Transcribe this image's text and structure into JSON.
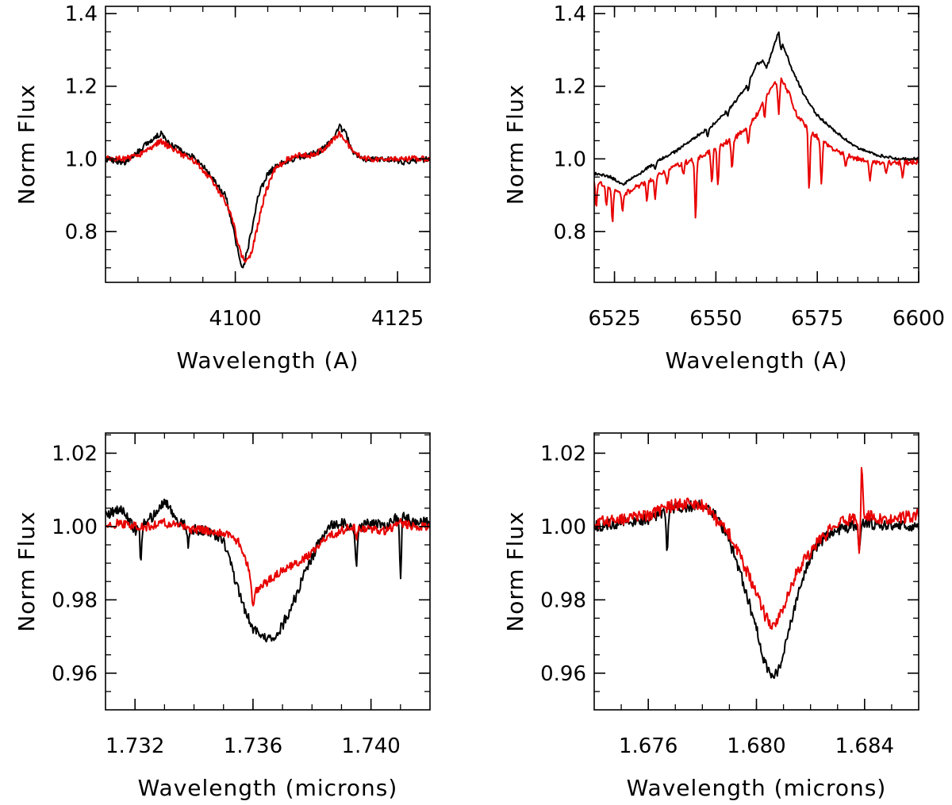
{
  "figure": {
    "layout": "2x2 grid"
  },
  "colors": {
    "series_black": "#000000",
    "series_red": "#e80000",
    "axes": "#000000"
  },
  "chart_data": [
    {
      "type": "line",
      "panel": "top-left",
      "xlabel": "Wavelength (A)",
      "ylabel": "Norm Flux",
      "xlim": [
        4080,
        4130
      ],
      "ylim": [
        0.66,
        1.42
      ],
      "xticks": [
        4100,
        4125
      ],
      "xtick_labels": [
        "4100",
        "4125"
      ],
      "xminor": 5,
      "yticks": [
        0.8,
        1.0,
        1.2,
        1.4
      ],
      "ytick_labels": [
        "0.8",
        "1.0",
        "1.2",
        "1.4"
      ],
      "yminor": 0.05,
      "series": [
        {
          "name": "black",
          "color": "#000000",
          "x": [
            4080,
            4083,
            4085,
            4087,
            4088.5,
            4090,
            4092,
            4094,
            4096,
            4097.5,
            4098.5,
            4099.5,
            4100.5,
            4101,
            4101.5,
            4102.5,
            4103.5,
            4105,
            4107,
            4109,
            4111,
            4113,
            4115,
            4116,
            4117,
            4118,
            4120,
            4123,
            4126,
            4130
          ],
          "y": [
            1.0,
            0.99,
            1.02,
            1.05,
            1.07,
            1.04,
            1.02,
            1.0,
            0.96,
            0.92,
            0.9,
            0.82,
            0.74,
            0.7,
            0.72,
            0.8,
            0.9,
            0.96,
            0.99,
            1.0,
            1.01,
            1.02,
            1.05,
            1.09,
            1.07,
            1.02,
            1.0,
            1.0,
            0.99,
            1.0
          ],
          "noise": 0.008
        },
        {
          "name": "red",
          "color": "#e80000",
          "x": [
            4080,
            4083,
            4085,
            4087,
            4088.5,
            4090,
            4092,
            4094,
            4096,
            4097.5,
            4098.5,
            4099.5,
            4100.5,
            4101.5,
            4102.5,
            4103.5,
            4104.5,
            4106,
            4108,
            4110,
            4112,
            4114,
            4116,
            4117,
            4118,
            4120,
            4123,
            4126,
            4130
          ],
          "y": [
            1.0,
            1.0,
            1.01,
            1.03,
            1.05,
            1.03,
            1.01,
            0.99,
            0.95,
            0.91,
            0.88,
            0.84,
            0.76,
            0.71,
            0.74,
            0.82,
            0.9,
            0.97,
            1.0,
            1.01,
            1.01,
            1.03,
            1.07,
            1.05,
            1.02,
            1.0,
            1.0,
            1.0,
            1.0
          ],
          "noise": 0.008
        }
      ]
    },
    {
      "type": "line",
      "panel": "top-right",
      "xlabel": "Wavelength (A)",
      "ylabel": "Norm Flux",
      "xlim": [
        6520,
        6600
      ],
      "ylim": [
        0.66,
        1.42
      ],
      "xticks": [
        6525,
        6550,
        6575,
        6600
      ],
      "xtick_labels": [
        "6525",
        "6550",
        "6575",
        "6600"
      ],
      "xminor": 5,
      "yticks": [
        0.8,
        1.0,
        1.2,
        1.4
      ],
      "ytick_labels": [
        "0.8",
        "1.0",
        "1.2",
        "1.4"
      ],
      "yminor": 0.05,
      "series": [
        {
          "name": "black",
          "color": "#000000",
          "x": [
            6520,
            6524,
            6527,
            6530,
            6535,
            6540,
            6545,
            6550,
            6555,
            6558,
            6560,
            6561.5,
            6562.5,
            6564,
            6565.5,
            6567,
            6569,
            6572,
            6575,
            6580,
            6585,
            6590,
            6595,
            6600
          ],
          "y": [
            0.96,
            0.95,
            0.93,
            0.95,
            0.99,
            1.02,
            1.06,
            1.1,
            1.16,
            1.21,
            1.26,
            1.27,
            1.25,
            1.3,
            1.35,
            1.3,
            1.24,
            1.17,
            1.12,
            1.07,
            1.03,
            1.01,
            1.0,
            1.0
          ],
          "noise": 0.004,
          "dips": [
            [
              6535,
              0.02
            ],
            [
              6548,
              0.02
            ],
            [
              6553,
              0.015
            ],
            [
              6558,
              0.02
            ],
            [
              6566,
              0.03
            ]
          ]
        },
        {
          "name": "red",
          "color": "#e80000",
          "x": [
            6520,
            6524,
            6527,
            6530,
            6535,
            6540,
            6545,
            6550,
            6555,
            6558,
            6560,
            6562,
            6564,
            6566,
            6568,
            6570,
            6573,
            6576,
            6580,
            6585,
            6590,
            6595,
            6600
          ],
          "y": [
            0.94,
            0.92,
            0.9,
            0.92,
            0.95,
            0.98,
            1.0,
            1.03,
            1.06,
            1.09,
            1.12,
            1.17,
            1.2,
            1.22,
            1.18,
            1.12,
            1.08,
            1.05,
            1.02,
            1.0,
            0.99,
            0.99,
            0.99
          ],
          "noise": 0.007,
          "dips": [
            [
              6520.5,
              0.07
            ],
            [
              6523,
              0.05
            ],
            [
              6524.5,
              0.09
            ],
            [
              6527,
              0.04
            ],
            [
              6533,
              0.05
            ],
            [
              6535,
              0.06
            ],
            [
              6538,
              0.04
            ],
            [
              6542,
              0.03
            ],
            [
              6545,
              0.16
            ],
            [
              6549,
              0.09
            ],
            [
              6550.5,
              0.1
            ],
            [
              6554,
              0.08
            ],
            [
              6558,
              0.05
            ],
            [
              6562,
              0.06
            ],
            [
              6565.5,
              0.09
            ],
            [
              6573,
              0.16
            ],
            [
              6576,
              0.12
            ],
            [
              6582,
              0.04
            ],
            [
              6588,
              0.05
            ],
            [
              6592,
              0.03
            ],
            [
              6596,
              0.04
            ]
          ]
        }
      ]
    },
    {
      "type": "line",
      "panel": "bottom-left",
      "xlabel": "Wavelength (microns)",
      "ylabel": "Norm Flux",
      "xlim": [
        1.731,
        1.742
      ],
      "ylim": [
        0.95,
        1.0255
      ],
      "xticks": [
        1.732,
        1.736,
        1.74
      ],
      "xtick_labels": [
        "1.732",
        "1.736",
        "1.740"
      ],
      "xminor": 0.001,
      "yticks": [
        0.96,
        0.98,
        1.0,
        1.02
      ],
      "ytick_labels": [
        "0.96",
        "0.98",
        "1.00",
        "1.02"
      ],
      "yminor": 0.005,
      "series": [
        {
          "name": "black",
          "color": "#000000",
          "x": [
            1.731,
            1.7315,
            1.732,
            1.7325,
            1.733,
            1.7335,
            1.734,
            1.7345,
            1.735,
            1.7353,
            1.7356,
            1.736,
            1.7363,
            1.7366,
            1.737,
            1.7374,
            1.7378,
            1.7382,
            1.7386,
            1.739,
            1.7395,
            1.74,
            1.7405,
            1.741,
            1.7415,
            1.742
          ],
          "y": [
            1.003,
            1.005,
            0.999,
            1.002,
            1.007,
            1.001,
            0.999,
            0.999,
            0.996,
            0.988,
            0.98,
            0.972,
            0.97,
            0.969,
            0.973,
            0.98,
            0.988,
            0.995,
            1.0,
            1.001,
            0.999,
            1.001,
            1.0,
            1.003,
            1.001,
            1.001
          ],
          "noise": 0.0015,
          "dips": [
            [
              1.7322,
              0.01
            ],
            [
              1.7338,
              0.005
            ],
            [
              1.7395,
              0.01
            ],
            [
              1.741,
              0.017
            ]
          ]
        },
        {
          "name": "red",
          "color": "#e80000",
          "x": [
            1.731,
            1.7315,
            1.732,
            1.7325,
            1.733,
            1.7335,
            1.734,
            1.7345,
            1.735,
            1.7355,
            1.7358,
            1.736,
            1.7365,
            1.737,
            1.7375,
            1.738,
            1.7385,
            1.739,
            1.7395,
            1.74,
            1.7405,
            1.741,
            1.7415,
            1.742
          ],
          "y": [
            1.0,
            1.001,
            1.0,
            1.0,
            1.001,
            1.0,
            0.999,
            0.999,
            0.998,
            0.996,
            0.99,
            0.982,
            0.985,
            0.988,
            0.99,
            0.993,
            0.997,
            0.999,
            1.0,
            0.999,
            0.999,
            1.001,
            1.0,
            1.0
          ],
          "noise": 0.0012,
          "dips": [
            [
              1.736,
              0.004
            ],
            [
              1.7395,
              0.003
            ]
          ]
        }
      ]
    },
    {
      "type": "line",
      "panel": "bottom-right",
      "xlabel": "Wavelength (microns)",
      "ylabel": "Norm Flux",
      "xlim": [
        1.674,
        1.686
      ],
      "ylim": [
        0.95,
        1.0255
      ],
      "xticks": [
        1.676,
        1.68,
        1.684
      ],
      "xtick_labels": [
        "1.676",
        "1.680",
        "1.684"
      ],
      "xminor": 0.001,
      "yticks": [
        0.96,
        0.98,
        1.0,
        1.02
      ],
      "ytick_labels": [
        "0.96",
        "0.98",
        "1.00",
        "1.02"
      ],
      "yminor": 0.005,
      "series": [
        {
          "name": "black",
          "color": "#000000",
          "x": [
            1.674,
            1.675,
            1.676,
            1.677,
            1.678,
            1.6785,
            1.679,
            1.6795,
            1.68,
            1.6803,
            1.6806,
            1.6809,
            1.6812,
            1.6816,
            1.682,
            1.6825,
            1.683,
            1.684,
            1.685,
            1.686
          ],
          "y": [
            1.0,
            1.001,
            1.002,
            1.005,
            1.006,
            1.003,
            0.996,
            0.985,
            0.972,
            0.963,
            0.958,
            0.962,
            0.972,
            0.983,
            0.992,
            0.997,
            0.999,
            1.001,
            1.0,
            1.0
          ],
          "noise": 0.0015,
          "dips": [
            [
              1.6767,
              0.01
            ],
            [
              1.6838,
              0.006
            ]
          ]
        },
        {
          "name": "red",
          "color": "#e80000",
          "x": [
            1.674,
            1.675,
            1.676,
            1.677,
            1.678,
            1.6785,
            1.679,
            1.6795,
            1.68,
            1.6803,
            1.6806,
            1.681,
            1.6814,
            1.6818,
            1.6822,
            1.6826,
            1.683,
            1.684,
            1.685,
            1.686
          ],
          "y": [
            1.001,
            1.002,
            1.003,
            1.006,
            1.006,
            1.002,
            0.998,
            0.99,
            0.982,
            0.976,
            0.972,
            0.978,
            0.986,
            0.991,
            0.995,
            0.998,
            1.001,
            1.003,
            1.002,
            1.003
          ],
          "noise": 0.0017,
          "dips": [
            [
              1.6838,
              0.01
            ]
          ],
          "spikes": [
            [
              1.6839,
              0.014
            ]
          ]
        }
      ]
    }
  ]
}
